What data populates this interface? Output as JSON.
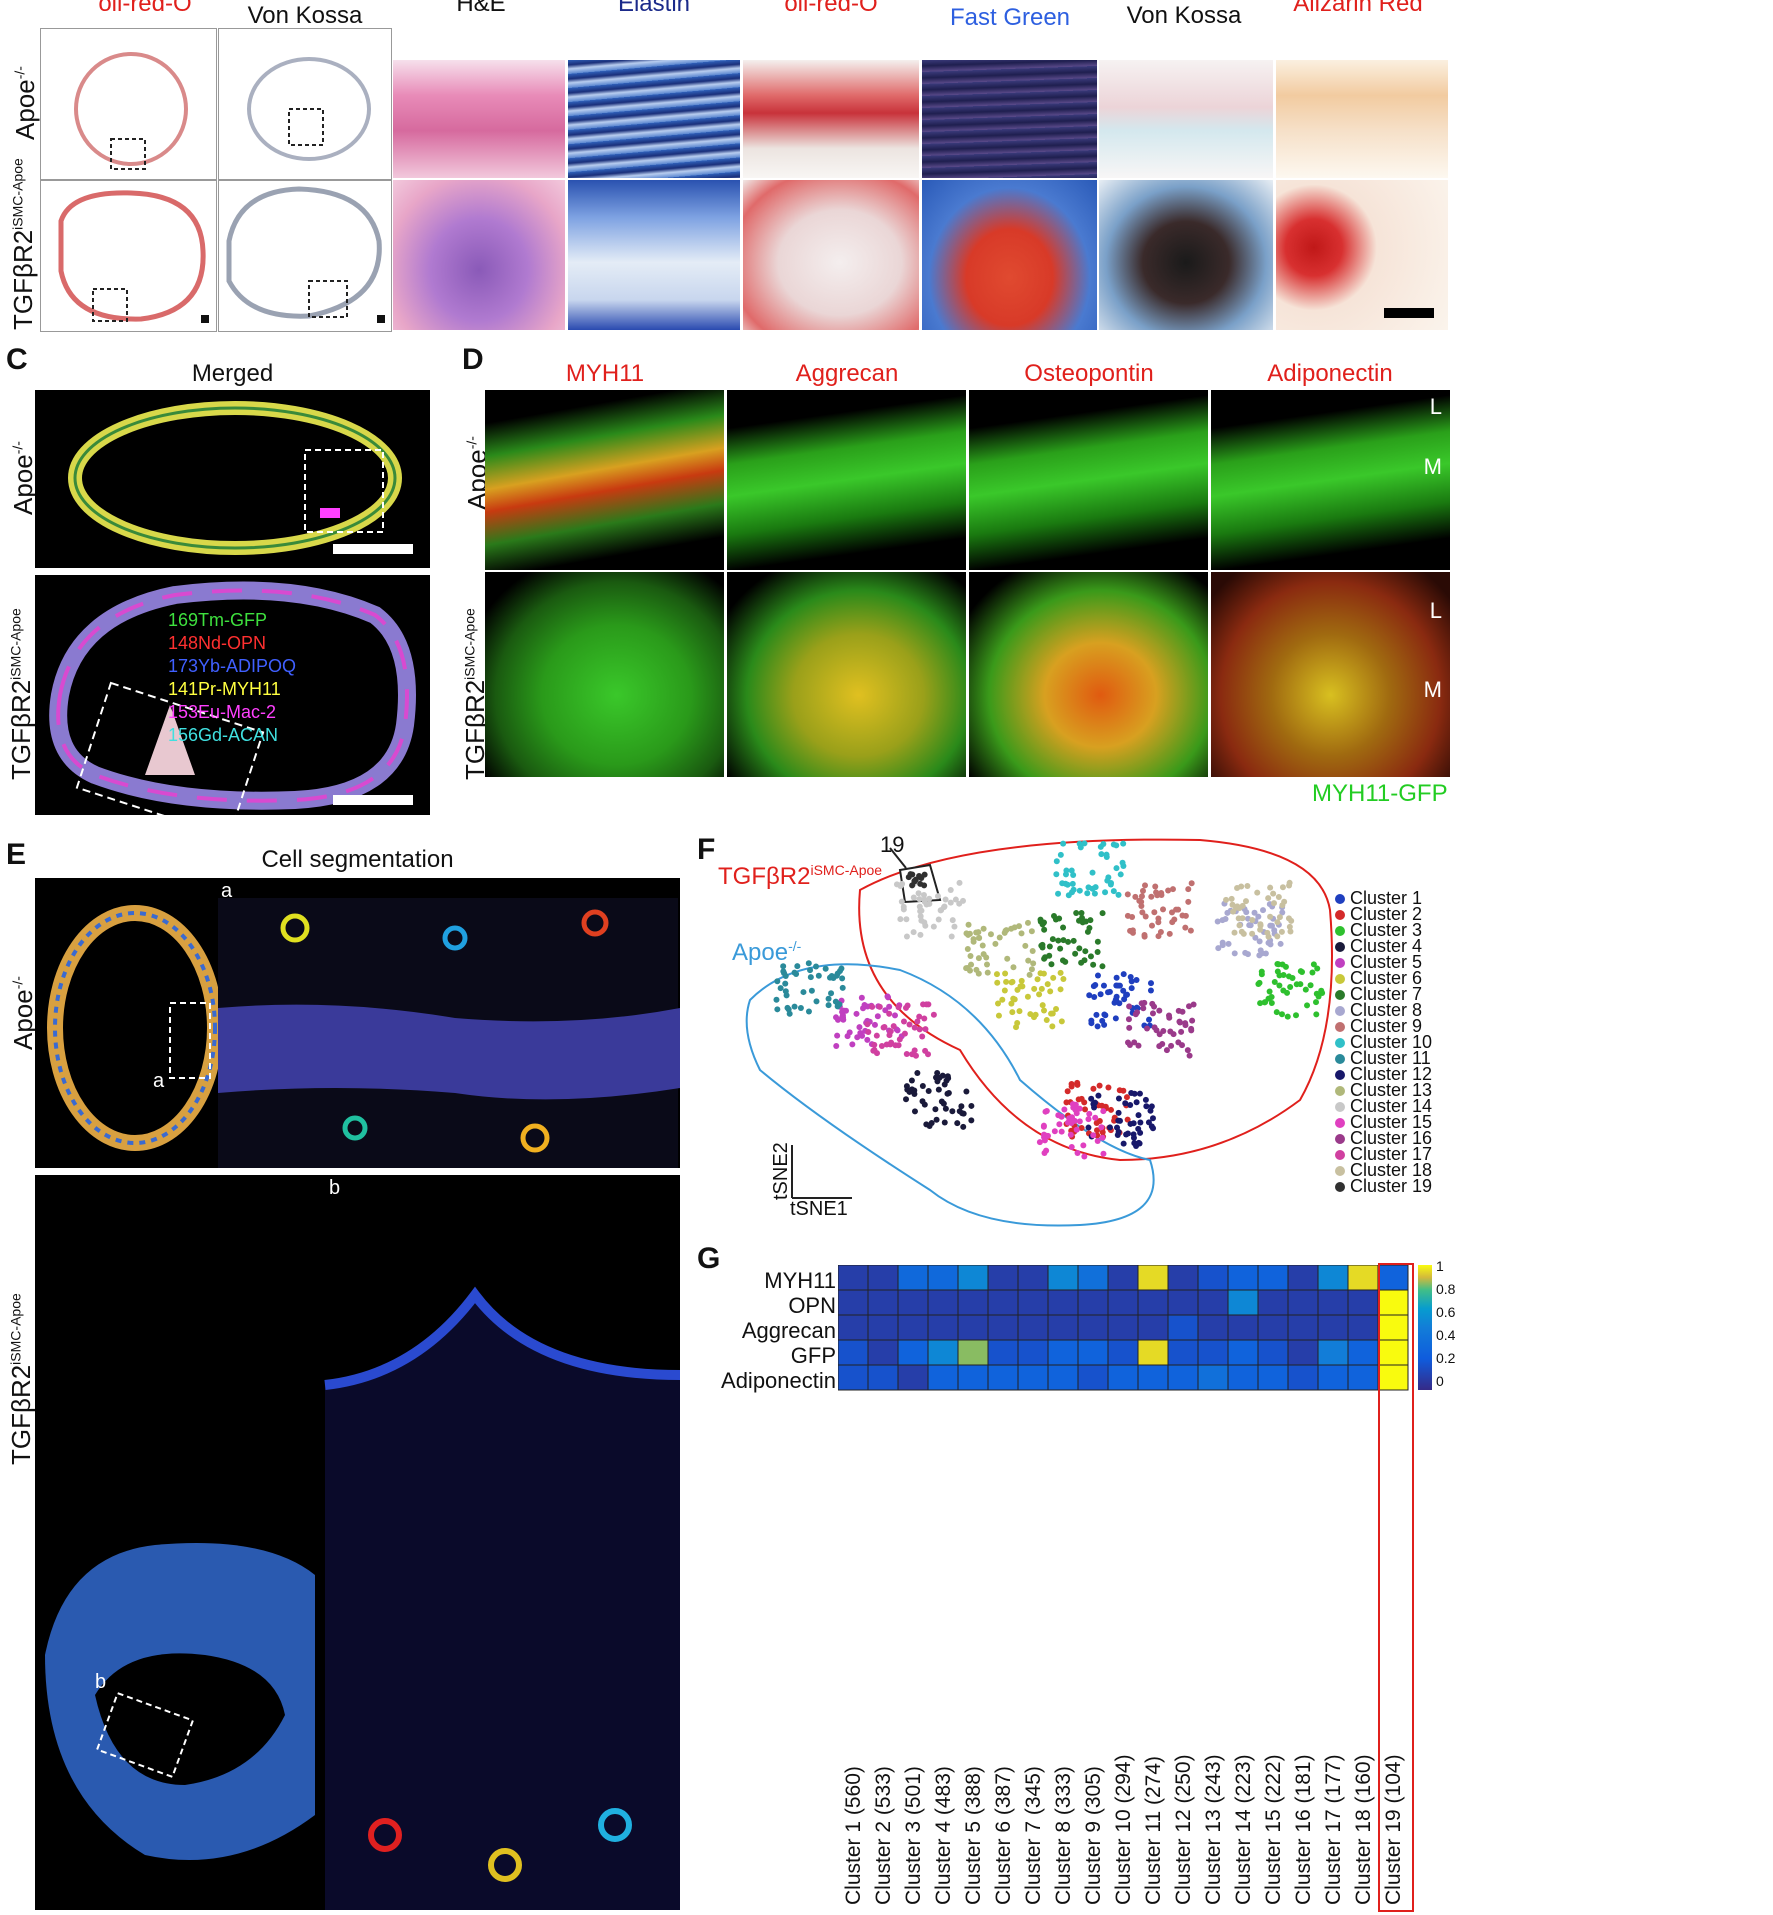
{
  "panelA": {
    "titles": [
      "oil-red-O",
      "Von Kossa"
    ],
    "title_colors": [
      "#e0201c",
      "#111111"
    ]
  },
  "panelB": {
    "titles": [
      "H&E",
      "Elastin",
      "oil-red-O",
      "Fast Green",
      "Von Kossa",
      "Alizarin Red"
    ],
    "title_colors": [
      "#111111",
      "#1b2a8a",
      "#e0201c",
      "#2d5fe0",
      "#111111",
      "#e0201c"
    ]
  },
  "row_labels": {
    "apoe": "Apoe",
    "apoe_sup": "-/-",
    "tgf": "TGFβR2",
    "tgf_sup": "iSMC-Apoe"
  },
  "panelC": {
    "letter": "C",
    "title": "Merged",
    "markers": [
      {
        "text": "169Tm-GFP",
        "color": "#3ee03e"
      },
      {
        "text": "148Nd-OPN",
        "color": "#ff3030"
      },
      {
        "text": "173Yb-ADIPOQ",
        "color": "#4060ff"
      },
      {
        "text": "141Pr-MYH11",
        "color": "#ffff40"
      },
      {
        "text": "153Eu-Mac-2",
        "color": "#ff40ff"
      },
      {
        "text": "156Gd-ACAN",
        "color": "#40e0e0"
      }
    ]
  },
  "panelD": {
    "letter": "D",
    "titles": [
      "MYH11",
      "Aggrecan",
      "Osteopontin",
      "Adiponectin"
    ],
    "title_color": "#e0201c",
    "L": "L",
    "M": "M",
    "footer": "MYH11-GFP",
    "footer_color": "#22cc22"
  },
  "panelE": {
    "letter": "E",
    "title": "Cell segmentation",
    "a": "a",
    "b": "b"
  },
  "panelF": {
    "letter": "F",
    "label_19": "19",
    "tgf_color": "#e0201c",
    "apoe_color": "#3a9ad9",
    "axis_x": "tSNE1",
    "axis_y": "tSNE2",
    "clusters": [
      {
        "name": "Cluster 1",
        "color": "#1f3fbf"
      },
      {
        "name": "Cluster 2",
        "color": "#d42a2a"
      },
      {
        "name": "Cluster 3",
        "color": "#2ec02e"
      },
      {
        "name": "Cluster 4",
        "color": "#1a1a3a"
      },
      {
        "name": "Cluster 5",
        "color": "#c040c0"
      },
      {
        "name": "Cluster 6",
        "color": "#c8c83a"
      },
      {
        "name": "Cluster 7",
        "color": "#2a7a2a"
      },
      {
        "name": "Cluster 8",
        "color": "#a8a8d0"
      },
      {
        "name": "Cluster 9",
        "color": "#c07070"
      },
      {
        "name": "Cluster 10",
        "color": "#30c0c8"
      },
      {
        "name": "Cluster 11",
        "color": "#2a8a9a"
      },
      {
        "name": "Cluster 12",
        "color": "#18186a"
      },
      {
        "name": "Cluster 13",
        "color": "#b0b87a"
      },
      {
        "name": "Cluster 14",
        "color": "#c8c8c8"
      },
      {
        "name": "Cluster 15",
        "color": "#e040c0"
      },
      {
        "name": "Cluster 16",
        "color": "#9a3a8a"
      },
      {
        "name": "Cluster 17",
        "color": "#d040a0"
      },
      {
        "name": "Cluster 18",
        "color": "#c8c0a0"
      },
      {
        "name": "Cluster 19",
        "color": "#303030"
      }
    ]
  },
  "panelG": {
    "letter": "G",
    "rows": [
      "MYH11",
      "OPN",
      "Aggrecan",
      "GFP",
      "Adiponectin"
    ],
    "columns": [
      "Cluster 1 (560)",
      "Cluster 2 (533)",
      "Cluster 3 (501)",
      "Cluster 4 (483)",
      "Cluster 5 (388)",
      "Cluster 6 (387)",
      "Cluster 7 (345)",
      "Cluster 8 (333)",
      "Cluster 9 (305)",
      "Cluster 10 (294)",
      "Cluster 11 (274)",
      "Cluster 12 (250)",
      "Cluster 13 (243)",
      "Cluster 14 (223)",
      "Cluster 15 (222)",
      "Cluster 16 (181)",
      "Cluster 17 (177)",
      "Cluster 18 (160)",
      "Cluster 19 (104)"
    ],
    "colorbar_ticks": [
      "1",
      "0.8",
      "0.6",
      "0.4",
      "0.2",
      "0"
    ],
    "highlight_color": "#e0201c",
    "values": [
      [
        0.1,
        0.1,
        0.35,
        0.35,
        0.55,
        0.1,
        0.1,
        0.55,
        0.4,
        0.1,
        0.95,
        0.1,
        0.2,
        0.3,
        0.3,
        0.1,
        0.55,
        0.95,
        0.3
      ],
      [
        0.1,
        0.1,
        0.1,
        0.1,
        0.1,
        0.1,
        0.1,
        0.1,
        0.1,
        0.1,
        0.1,
        0.1,
        0.1,
        0.55,
        0.1,
        0.1,
        0.1,
        0.1,
        1.0
      ],
      [
        0.1,
        0.1,
        0.1,
        0.1,
        0.1,
        0.1,
        0.1,
        0.1,
        0.1,
        0.1,
        0.1,
        0.2,
        0.1,
        0.1,
        0.1,
        0.1,
        0.1,
        0.1,
        1.0
      ],
      [
        0.2,
        0.1,
        0.3,
        0.55,
        0.85,
        0.2,
        0.2,
        0.3,
        0.3,
        0.2,
        0.95,
        0.2,
        0.2,
        0.3,
        0.2,
        0.1,
        0.5,
        0.3,
        1.0
      ],
      [
        0.2,
        0.2,
        0.1,
        0.3,
        0.3,
        0.3,
        0.3,
        0.3,
        0.2,
        0.3,
        0.3,
        0.3,
        0.4,
        0.3,
        0.3,
        0.2,
        0.3,
        0.3,
        1.0
      ]
    ]
  }
}
